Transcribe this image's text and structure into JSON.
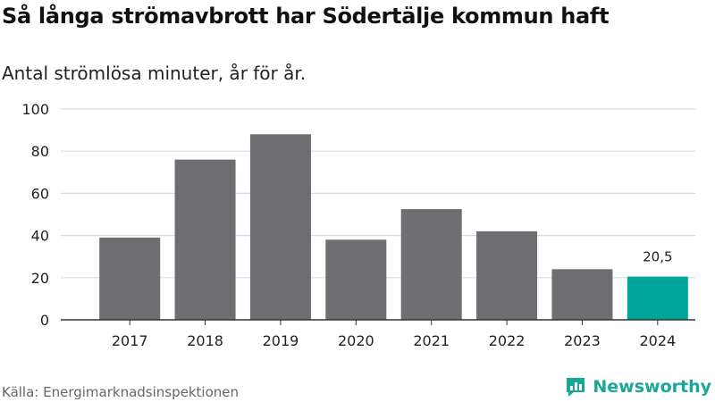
{
  "title": "Så långa strömavbrott har Södertälje kommun haft",
  "subtitle": "Antal strömlösa minuter, år för år.",
  "source": "Källa: Energimarknadsinspektionen",
  "brand": {
    "name": "Newsworthy",
    "icon": "bar-chart-logo-icon",
    "color": "#1aa79a"
  },
  "colors": {
    "bar": "#6e6d72",
    "highlight": "#00a59a",
    "grid": "#d9d9d9",
    "axis": "#333333"
  },
  "chart_data": {
    "type": "bar",
    "categories": [
      "2017",
      "2018",
      "2019",
      "2020",
      "2021",
      "2022",
      "2023",
      "2024"
    ],
    "values": [
      39,
      76,
      88,
      38,
      52.5,
      42,
      24,
      20.5
    ],
    "highlight_index": 7,
    "data_labels": {
      "7": "20,5"
    },
    "ylim": [
      0,
      100
    ],
    "yticks": [
      0,
      20,
      40,
      60,
      80,
      100
    ],
    "ytick_labels": [
      "0",
      "20",
      "40",
      "60",
      "80",
      "100"
    ],
    "grid": true,
    "legend": "none",
    "xlabel": "",
    "ylabel": ""
  }
}
